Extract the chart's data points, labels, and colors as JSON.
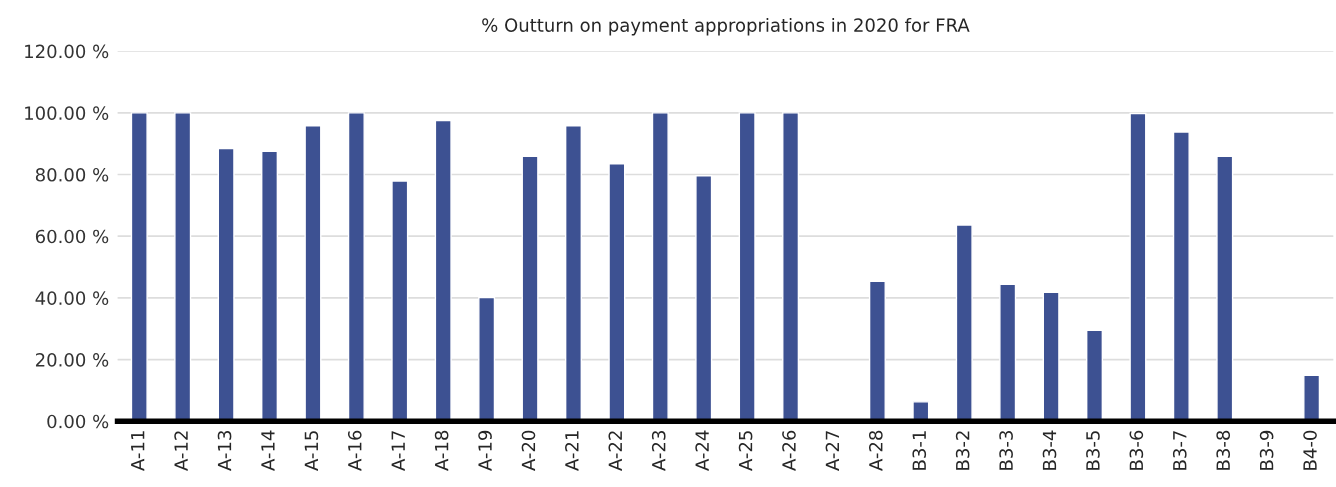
{
  "chart_data": {
    "type": "bar",
    "title": "% Outturn on payment appropriations in 2020 for FRA",
    "categories": [
      "A-11",
      "A-12",
      "A-13",
      "A-14",
      "A-15",
      "A-16",
      "A-17",
      "A-18",
      "A-19",
      "A-20",
      "A-21",
      "A-22",
      "A-23",
      "A-24",
      "A-25",
      "A-26",
      "A-27",
      "A-28",
      "B3-1",
      "B3-2",
      "B3-3",
      "B3-4",
      "B3-5",
      "B3-6",
      "B3-7",
      "B3-8",
      "B3-9",
      "B4-0"
    ],
    "values": [
      100,
      100,
      88.4,
      87.5,
      95.8,
      100,
      77.9,
      97.5,
      40.1,
      85.9,
      95.8,
      83.5,
      100,
      79.6,
      100,
      100,
      null,
      45.4,
      6.3,
      63.6,
      44.4,
      41.8,
      29.5,
      99.8,
      93.8,
      85.9,
      null,
      14.9
    ],
    "color": "#3d5192",
    "ylim": [
      0,
      120
    ],
    "yticks": [
      {
        "value": 0,
        "label": "0.00 %"
      },
      {
        "value": 20,
        "label": "20.00 %"
      },
      {
        "value": 40,
        "label": "40.00 %"
      },
      {
        "value": 60,
        "label": "60.00 %"
      },
      {
        "value": 80,
        "label": "80.00 %"
      },
      {
        "value": 100,
        "label": "100.00 %"
      },
      {
        "value": 120,
        "label": "120.00 %"
      }
    ],
    "grid": "y"
  }
}
